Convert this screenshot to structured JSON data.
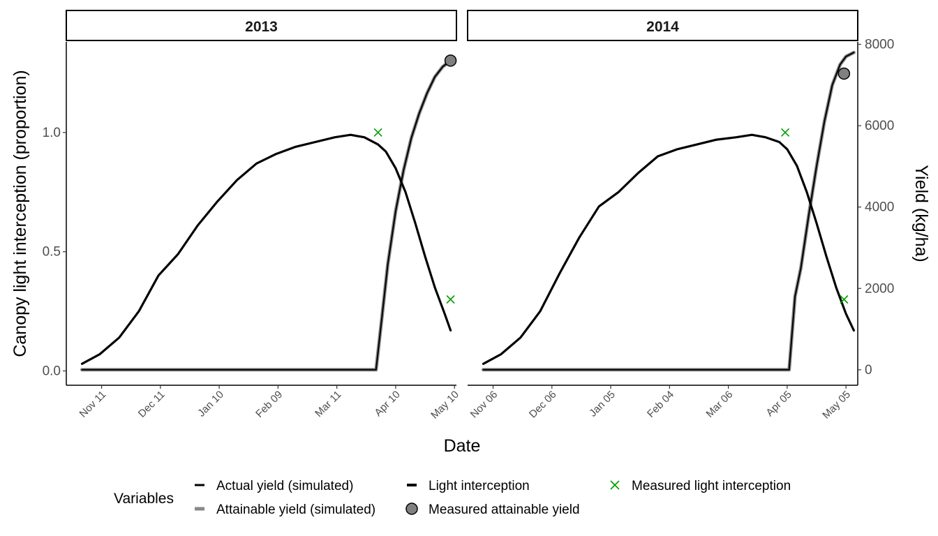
{
  "chart_data": {
    "type": "line",
    "title": "",
    "xlabel": "Date",
    "ylabel": "Canopy light interception (proportion)",
    "ylabel_right": "Yield (kg/ha)",
    "ylim": [
      -0.06,
      1.38
    ],
    "ylim_right": [
      -380,
      8060
    ],
    "y_ticks": [
      0.0,
      0.5,
      1.0
    ],
    "y_tick_labels": [
      "0.0",
      "0.5",
      "1.0"
    ],
    "y_right_ticks": [
      0,
      2000,
      4000,
      6000,
      8000
    ],
    "y_right_tick_labels": [
      "0",
      "2000",
      "4000",
      "6000",
      "8000"
    ],
    "grid": false,
    "legend": {
      "position": "bottom",
      "title": "Variables",
      "entries": [
        {
          "label": "Actual yield (simulated)",
          "symbol": "line",
          "color": "#000000"
        },
        {
          "label": "Attainable yield (simulated)",
          "symbol": "line",
          "color": "#888888"
        },
        {
          "label": "Light interception",
          "symbol": "line",
          "color": "#000000"
        },
        {
          "label": "Measured attainable yield",
          "symbol": "circle",
          "color": "#808080"
        },
        {
          "label": "Measured light interception",
          "symbol": "cross",
          "color": "#009E00"
        }
      ]
    },
    "panels": [
      {
        "strip": "2013",
        "xlim": [
          "2012-10-24",
          "2013-05-11"
        ],
        "x_ticks": [
          "2012-11-11",
          "2012-12-11",
          "2013-01-10",
          "2013-02-09",
          "2013-03-11",
          "2013-04-10",
          "2013-05-10"
        ],
        "x_tick_labels": [
          "Nov 11",
          "Dec 11",
          "Jan 10",
          "Feb 09",
          "Mar 11",
          "Apr 10",
          "May 10"
        ],
        "light_interception": {
          "x": [
            "2012-11-01",
            "2012-11-10",
            "2012-11-20",
            "2012-11-30",
            "2012-12-10",
            "2012-12-20",
            "2012-12-30",
            "2013-01-09",
            "2013-01-19",
            "2013-01-29",
            "2013-02-08",
            "2013-02-18",
            "2013-02-28",
            "2013-03-10",
            "2013-03-18",
            "2013-03-25",
            "2013-04-01",
            "2013-04-05",
            "2013-04-10",
            "2013-04-15",
            "2013-04-20",
            "2013-04-25",
            "2013-04-30",
            "2013-05-05",
            "2013-05-08"
          ],
          "y": [
            0.03,
            0.07,
            0.14,
            0.25,
            0.4,
            0.49,
            0.61,
            0.71,
            0.8,
            0.87,
            0.91,
            0.94,
            0.96,
            0.98,
            0.99,
            0.98,
            0.95,
            0.92,
            0.85,
            0.75,
            0.62,
            0.48,
            0.35,
            0.24,
            0.17
          ]
        },
        "attainable_yield": {
          "x": [
            "2012-11-01",
            "2013-03-31",
            "2013-04-03",
            "2013-04-06",
            "2013-04-10",
            "2013-04-14",
            "2013-04-18",
            "2013-04-22",
            "2013-04-26",
            "2013-04-30",
            "2013-05-04",
            "2013-05-08"
          ],
          "y": [
            0,
            0,
            1300,
            2600,
            3900,
            4900,
            5700,
            6300,
            6800,
            7200,
            7450,
            7600
          ]
        },
        "actual_yield": {
          "x": [
            "2012-11-01",
            "2013-03-31",
            "2013-04-03",
            "2013-04-06",
            "2013-04-10",
            "2013-04-14",
            "2013-04-18",
            "2013-04-22",
            "2013-04-26",
            "2013-04-30",
            "2013-05-04",
            "2013-05-08"
          ],
          "y": [
            0,
            0,
            1300,
            2600,
            3900,
            4900,
            5700,
            6300,
            6800,
            7200,
            7450,
            7600
          ]
        },
        "measured_light_interception": [
          {
            "x": "2013-04-01",
            "y": 1.0
          },
          {
            "x": "2013-05-08",
            "y": 0.3
          }
        ],
        "measured_attainable_yield": [
          {
            "x": "2013-05-08",
            "y": 7600
          }
        ]
      },
      {
        "strip": "2014",
        "xlim": [
          "2013-10-24",
          "2014-05-11"
        ],
        "x_ticks": [
          "2013-11-06",
          "2013-12-06",
          "2014-01-05",
          "2014-02-04",
          "2014-03-06",
          "2014-04-05",
          "2014-05-05"
        ],
        "x_tick_labels": [
          "Nov 06",
          "Dec 06",
          "Jan 05",
          "Feb 04",
          "Mar 06",
          "Apr 05",
          "May 05"
        ],
        "light_interception": {
          "x": [
            "2013-11-01",
            "2013-11-10",
            "2013-11-20",
            "2013-11-30",
            "2013-12-10",
            "2013-12-20",
            "2013-12-30",
            "2014-01-09",
            "2014-01-19",
            "2014-01-29",
            "2014-02-08",
            "2014-02-18",
            "2014-02-28",
            "2014-03-10",
            "2014-03-18",
            "2014-03-25",
            "2014-04-01",
            "2014-04-05",
            "2014-04-10",
            "2014-04-15",
            "2014-04-20",
            "2014-04-25",
            "2014-04-30",
            "2014-05-05",
            "2014-05-09"
          ],
          "y": [
            0.03,
            0.07,
            0.14,
            0.25,
            0.41,
            0.56,
            0.69,
            0.75,
            0.83,
            0.9,
            0.93,
            0.95,
            0.97,
            0.98,
            0.99,
            0.98,
            0.96,
            0.93,
            0.86,
            0.75,
            0.62,
            0.48,
            0.35,
            0.24,
            0.17
          ]
        },
        "attainable_yield": {
          "x": [
            "2013-11-01",
            "2014-04-06",
            "2014-04-09",
            "2014-04-12",
            "2014-04-16",
            "2014-04-20",
            "2014-04-24",
            "2014-04-28",
            "2014-05-02",
            "2014-05-05",
            "2014-05-09"
          ],
          "y": [
            0,
            0,
            1800,
            2500,
            3800,
            5000,
            6100,
            7000,
            7500,
            7700,
            7800
          ]
        },
        "actual_yield": {
          "x": [
            "2013-11-01",
            "2014-04-06",
            "2014-04-09",
            "2014-04-12",
            "2014-04-16",
            "2014-04-20",
            "2014-04-24",
            "2014-04-28",
            "2014-05-02",
            "2014-05-05",
            "2014-05-09"
          ],
          "y": [
            0,
            0,
            1800,
            2500,
            3800,
            5000,
            6100,
            7000,
            7500,
            7700,
            7800
          ]
        },
        "measured_light_interception": [
          {
            "x": "2014-04-04",
            "y": 1.0
          },
          {
            "x": "2014-05-04",
            "y": 0.3
          }
        ],
        "measured_attainable_yield": [
          {
            "x": "2014-05-04",
            "y": 7280
          }
        ]
      }
    ]
  }
}
